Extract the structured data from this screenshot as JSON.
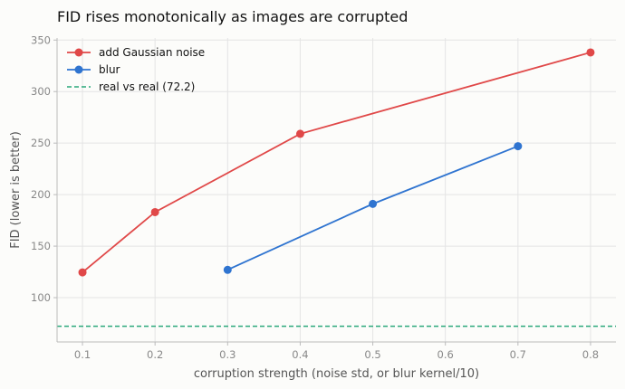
{
  "chart_data": {
    "type": "line",
    "title": "FID rises monotonically as images are corrupted",
    "xlabel": "corruption strength (noise std, or blur kernel/10)",
    "ylabel": "FID (lower is better)",
    "xlim": [
      0.065,
      0.835
    ],
    "ylim": [
      57,
      352
    ],
    "x_ticks": [
      0.1,
      0.2,
      0.3,
      0.4,
      0.5,
      0.6,
      0.7,
      0.8
    ],
    "x_tick_labels": [
      "0.1",
      "0.2",
      "0.3",
      "0.4",
      "0.5",
      "0.6",
      "0.7",
      "0.8"
    ],
    "y_ticks": [
      100,
      150,
      200,
      250,
      300,
      350
    ],
    "y_tick_labels": [
      "100",
      "150",
      "200",
      "250",
      "300",
      "350"
    ],
    "grid": true,
    "legend_position": "top-left",
    "series": [
      {
        "name": "add Gaussian noise",
        "color": "#e04848",
        "marker": "circle",
        "x": [
          0.1,
          0.2,
          0.4,
          0.8
        ],
        "y": [
          124.5,
          183,
          259,
          338
        ]
      },
      {
        "name": "blur",
        "color": "#2f74d0",
        "marker": "circle",
        "x": [
          0.3,
          0.5,
          0.7
        ],
        "y": [
          127,
          191,
          247
        ]
      }
    ],
    "reference_line": {
      "name": "real vs real (72.2)",
      "color": "#2aa87a",
      "style": "dashed",
      "y": 72.2
    }
  }
}
